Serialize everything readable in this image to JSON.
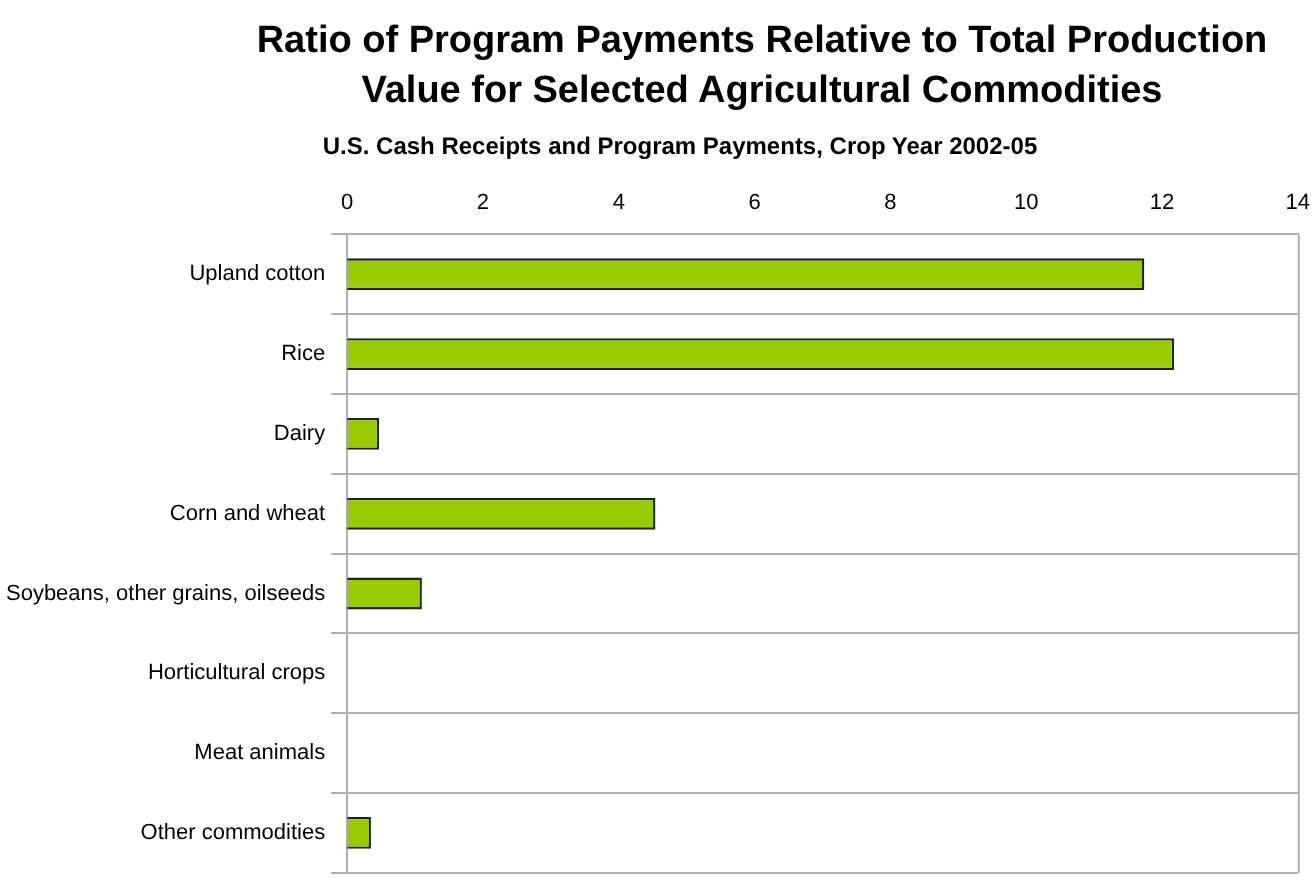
{
  "chart_data": {
    "type": "bar",
    "orientation": "horizontal",
    "title": "Ratio of Program Payments Relative to Total Production Value for Selected Agricultural Commodities",
    "subtitle": "U.S. Cash Receipts and Program Payments, Crop Year 2002-05",
    "categories": [
      "Upland cotton",
      "Rice",
      "Dairy",
      "Corn and wheat",
      "Soybeans, other grains, oilseeds",
      "Horticultural crops",
      "Meat animals",
      "Other commodities"
    ],
    "values": [
      11.74,
      12.18,
      0.47,
      4.54,
      1.1,
      null,
      null,
      0.35
    ],
    "color": "#99cc00",
    "xlim": [
      0,
      14
    ],
    "xticks": [
      0,
      2,
      4,
      6,
      8,
      10,
      12,
      14
    ],
    "grid": "y",
    "legend": false
  }
}
